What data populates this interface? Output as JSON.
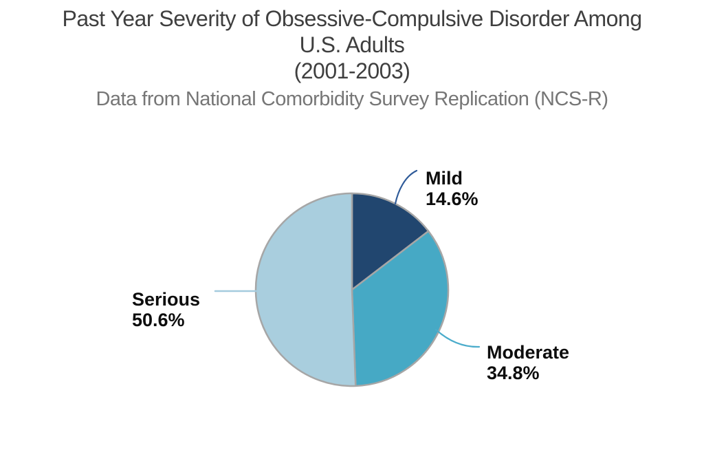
{
  "chart_data": {
    "type": "pie",
    "title": "Past Year Severity of Obsessive-Compulsive Disorder Among U.S. Adults (2001-2003)",
    "title_lines": [
      "Past Year Severity of Obsessive-Compulsive Disorder Among",
      "U.S. Adults",
      "(2001-2003)"
    ],
    "subtitle": "Data from National Comorbidity Survey Replication (NCS-R)",
    "unit": "%",
    "start_angle_deg": 0,
    "direction": "clockwise",
    "slices": [
      {
        "label": "Mild",
        "value": 14.6,
        "display": "14.6%",
        "color": "#21466F",
        "leader_color": "#2F5B99"
      },
      {
        "label": "Moderate",
        "value": 34.8,
        "display": "34.8%",
        "color": "#46A9C5",
        "leader_color": "#4BACCB"
      },
      {
        "label": "Serious",
        "value": 50.6,
        "display": "50.6%",
        "color": "#A9CEDE",
        "leader_color": "#A4CBDE"
      }
    ],
    "slice_border_color": "#A6A6A6",
    "label_color": "#0D0D0D",
    "title_color": "#3F3F3F",
    "subtitle_color": "#767676",
    "background": "#FFFFFF"
  }
}
